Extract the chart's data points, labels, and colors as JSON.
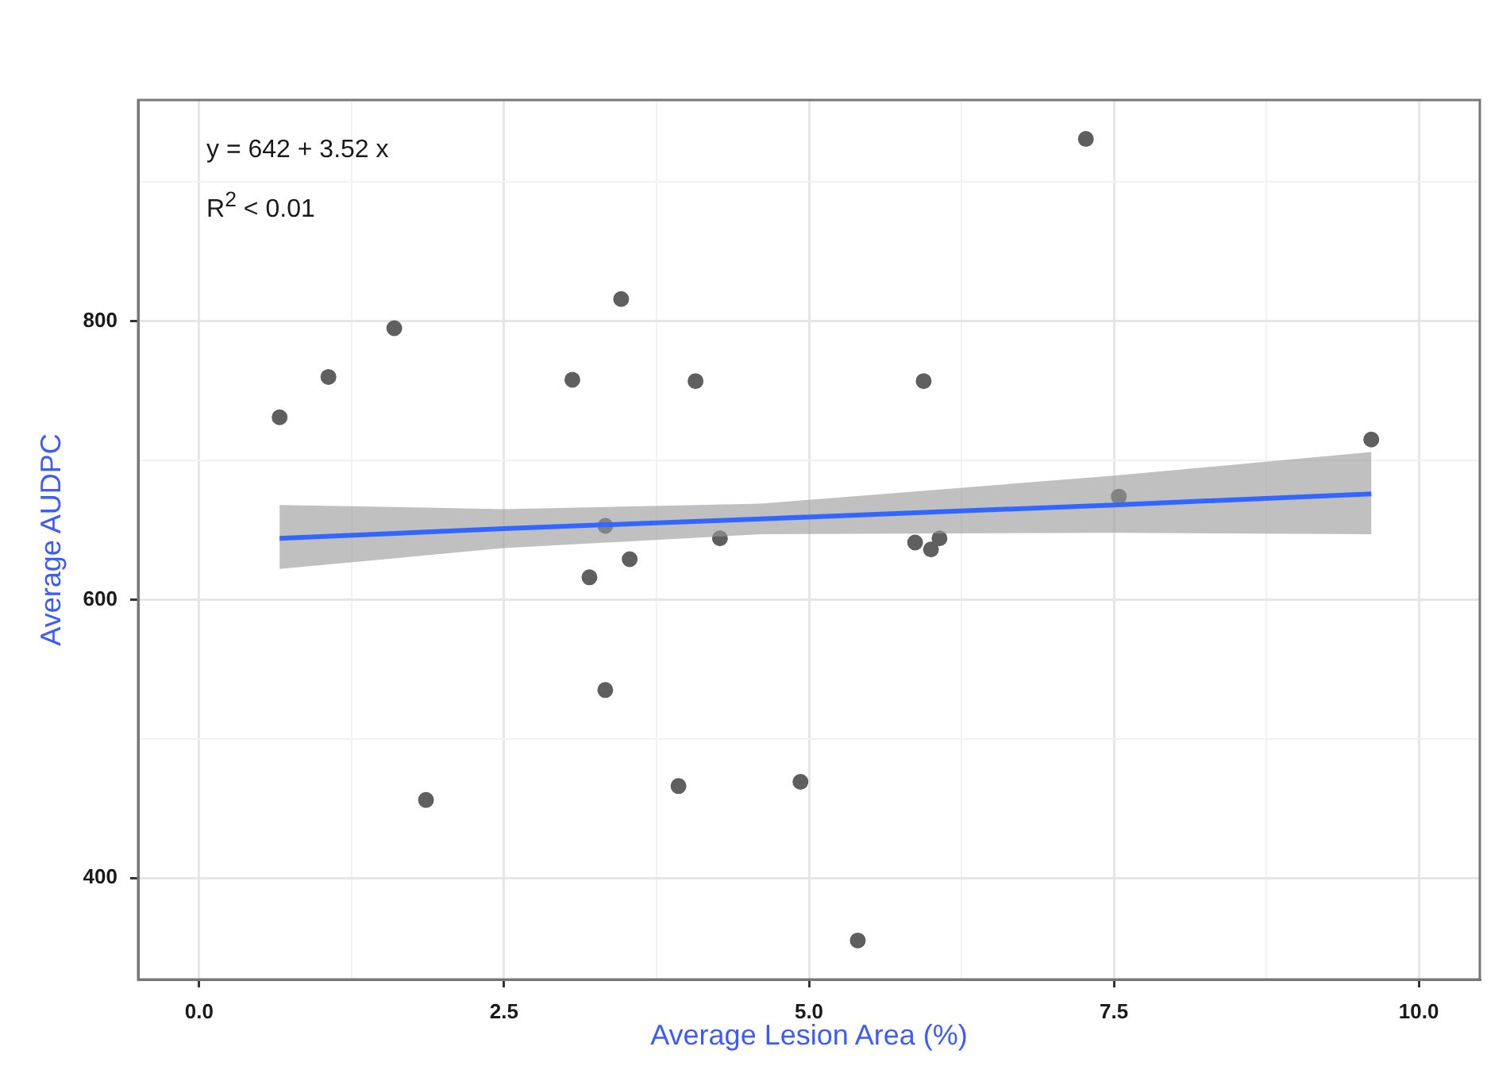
{
  "chart_data": {
    "type": "scatter",
    "xlabel": "Average Lesion Area (%)",
    "ylabel": "Average AUDPC",
    "annotations": [
      "y = 642 + 3.52 x",
      "R$^{2}$ < 0.01"
    ],
    "xlim": [
      -0.5,
      10.5
    ],
    "xticks": [
      {
        "value": 0,
        "label": "0.0"
      },
      {
        "value": 1.25,
        "label": null
      },
      2.5,
      {
        "value": 3.75,
        "label": null
      },
      {
        "value": 5,
        "label": "5.0"
      },
      {
        "value": 6.25,
        "label": null
      },
      7.5,
      {
        "value": 8.75,
        "label": null
      },
      {
        "value": 10,
        "label": "10.0"
      }
    ],
    "ylim": [
      327,
      959
    ],
    "yticks": [
      400,
      {
        "value": 500,
        "label": null
      },
      600,
      {
        "value": 700,
        "label": null
      },
      800,
      {
        "value": 900,
        "label": null
      }
    ],
    "grid": true,
    "legend": false,
    "marker": "circle",
    "series": [
      {
        "color": "#5f5f5f",
        "x": [
          0.66,
          1.06,
          1.6,
          3.06,
          3.46,
          4.07,
          3.33,
          4.27,
          7.27,
          5.94,
          9.61,
          7.54,
          5.87,
          6.0,
          6.07,
          3.2,
          3.53,
          3.33,
          1.86,
          3.93,
          4.93,
          5.4
        ],
        "values": [
          731,
          760,
          795,
          758,
          816,
          757,
          653,
          644,
          931,
          757,
          715,
          674,
          641,
          636,
          644,
          616,
          629,
          535,
          456,
          466,
          469,
          355
        ]
      },
      {
        "type": "line",
        "color": "#3366ff",
        "line_style": "solid",
        "marker": "none",
        "x": [
          0.66,
          2.5,
          4.61,
          7.5,
          9.61
        ],
        "values": [
          644,
          651,
          658,
          668,
          676
        ],
        "lower": [
          622,
          637,
          647,
          648,
          647
        ],
        "upper": [
          668,
          665,
          669,
          689,
          706
        ]
      }
    ]
  }
}
